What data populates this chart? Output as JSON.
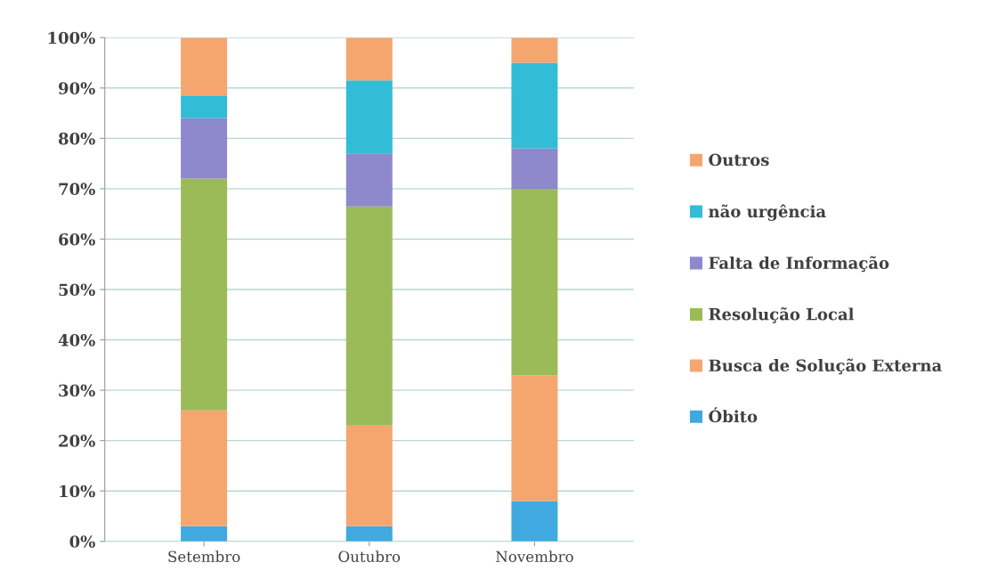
{
  "chart_data": {
    "type": "bar",
    "stacked": true,
    "categories": [
      "Setembro",
      "Outubro",
      "Novembro"
    ],
    "series": [
      {
        "name": "Óbito",
        "color": "#3fa9e0",
        "values": [
          3,
          3,
          8
        ]
      },
      {
        "name": "Busca de Solução Externa",
        "color": "#f5a66e",
        "values": [
          23,
          20,
          25
        ]
      },
      {
        "name": "Resolução Local",
        "color": "#9bbb59",
        "values": [
          46,
          43.5,
          37
        ]
      },
      {
        "name": "Falta de Informação",
        "color": "#8e88cc",
        "values": [
          12,
          10.5,
          8
        ]
      },
      {
        "name": "não urgência",
        "color": "#33bcd6",
        "values": [
          4.5,
          14.5,
          17
        ]
      },
      {
        "name": "Outros",
        "color": "#f5a66e",
        "values": [
          11.5,
          8.5,
          5
        ]
      }
    ],
    "ylim": [
      0,
      100
    ],
    "yticks": [
      {
        "value": 0,
        "label": "0%"
      },
      {
        "value": 10,
        "label": "10%"
      },
      {
        "value": 20,
        "label": "20%"
      },
      {
        "value": 30,
        "label": "30%"
      },
      {
        "value": 40,
        "label": "40%"
      },
      {
        "value": 50,
        "label": "50%"
      },
      {
        "value": 60,
        "label": "60%"
      },
      {
        "value": 70,
        "label": "70%"
      },
      {
        "value": 80,
        "label": "80%"
      },
      {
        "value": 90,
        "label": "90%"
      },
      {
        "value": 100,
        "label": "100%"
      }
    ],
    "grid": "y",
    "legend": "right"
  }
}
